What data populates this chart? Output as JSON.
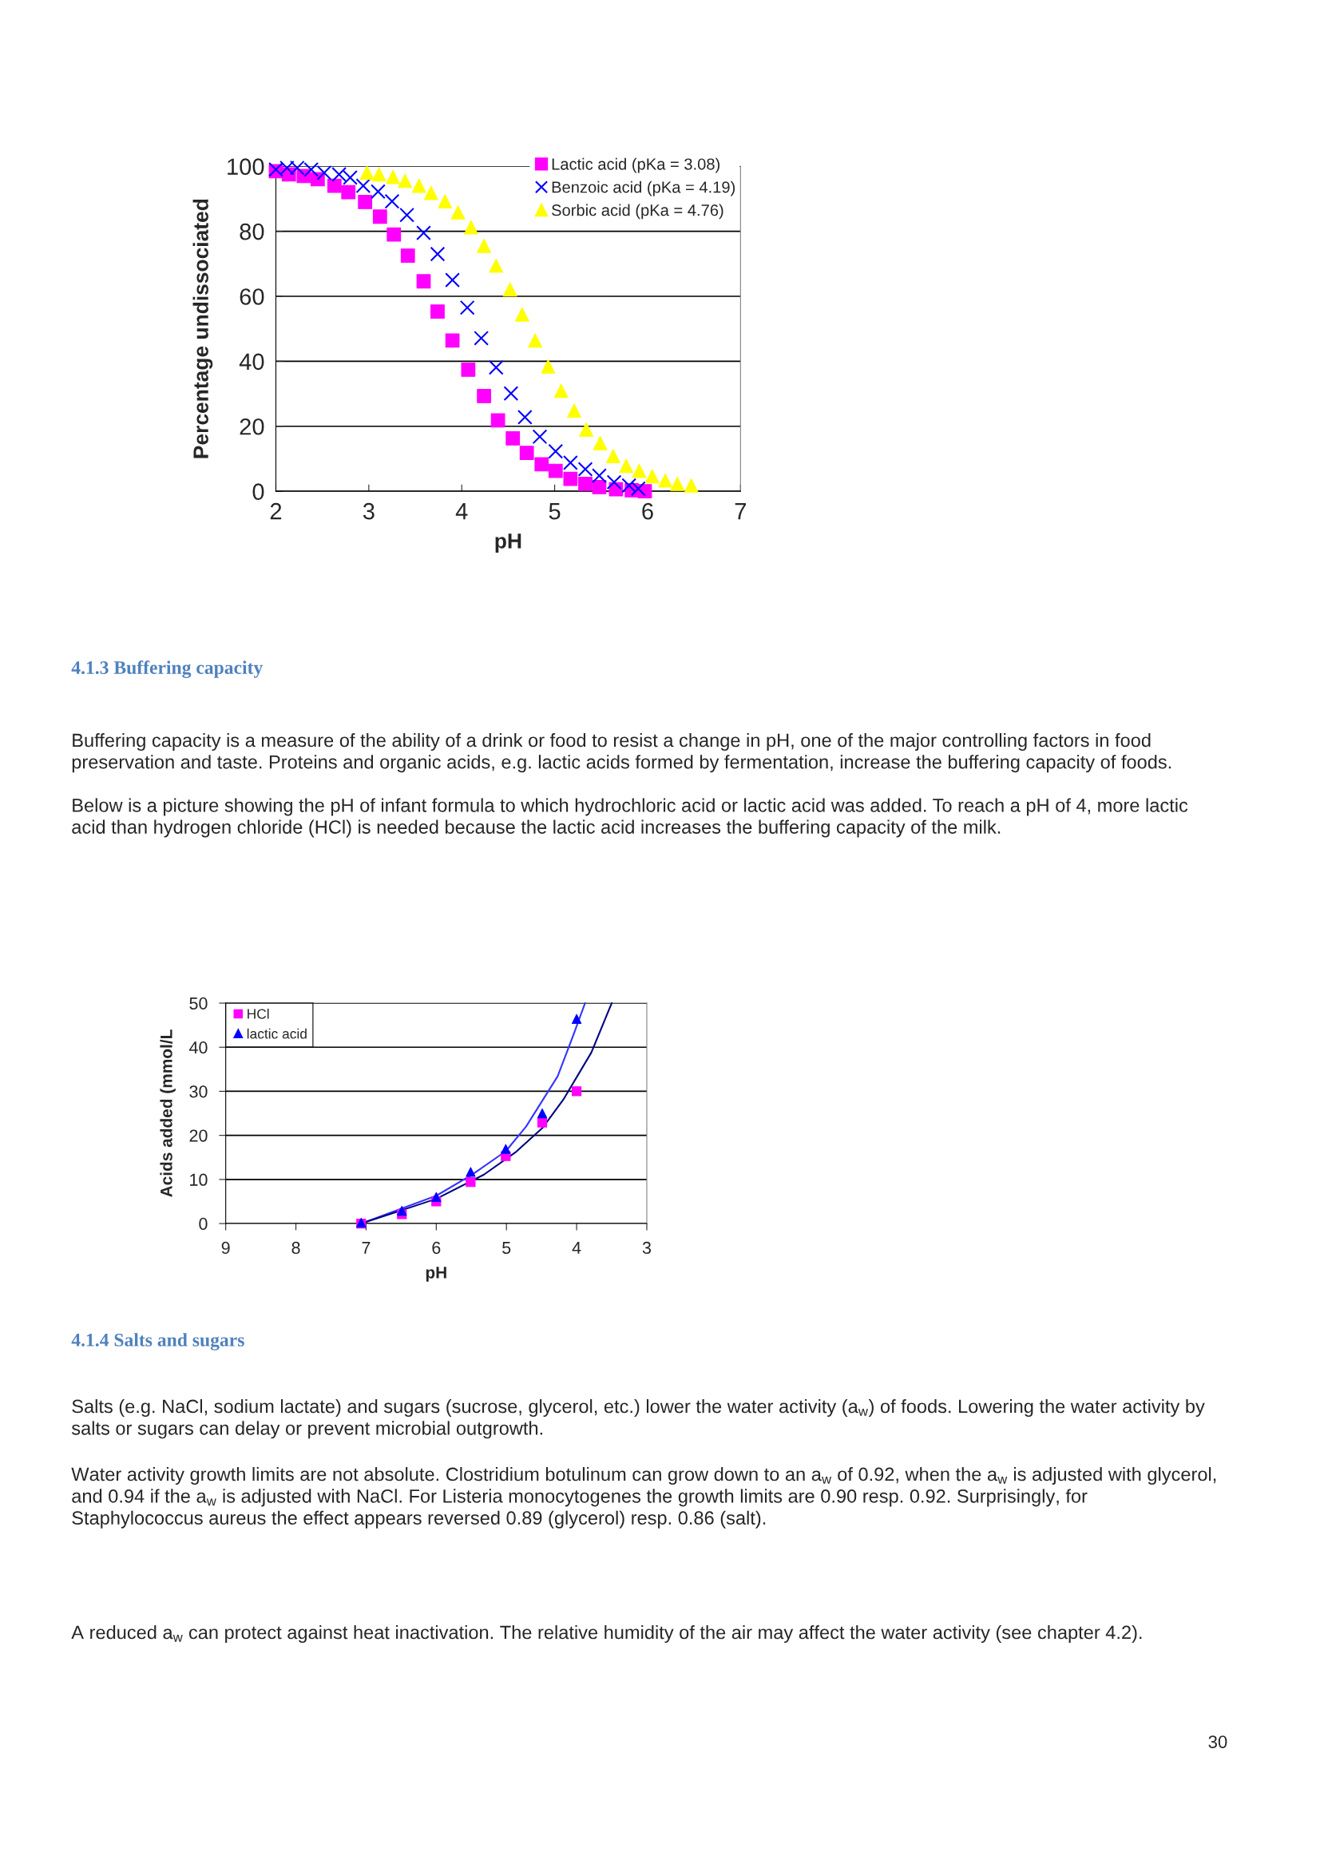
{
  "chart_data": [
    {
      "type": "scatter",
      "xlabel": "pH",
      "ylabel": "Percentage undissociated",
      "xlim": [
        2,
        7
      ],
      "ylim": [
        0,
        100
      ],
      "xticks": [
        2,
        3,
        4,
        5,
        6,
        7
      ],
      "yticks": [
        0,
        20,
        40,
        60,
        80,
        100
      ],
      "grid": "y",
      "legend": "top right",
      "series": [
        {
          "name": "Lactic acid (pKa = 3.08)",
          "color": "#ff00ff",
          "marker": "square",
          "x": [
            2.0,
            2.14,
            2.3,
            2.45,
            2.63,
            2.78,
            2.96,
            3.12,
            3.27,
            3.42,
            3.59,
            3.74,
            3.9,
            4.07,
            4.24,
            4.39,
            4.55,
            4.7,
            4.86,
            5.01,
            5.17,
            5.33,
            5.48,
            5.66,
            5.83,
            5.97
          ],
          "values": [
            98.5,
            97.5,
            97.0,
            96.0,
            94.0,
            92.0,
            89.0,
            84.5,
            79.0,
            72.5,
            64.6,
            55.3,
            46.4,
            37.4,
            29.3,
            21.8,
            16.3,
            11.8,
            8.3,
            6.3,
            3.8,
            2.3,
            1.3,
            0.6,
            0.3,
            0
          ]
        },
        {
          "name": "Benzoic acid (pKa = 4.19)",
          "color": "#0000ff",
          "marker": "cross",
          "x": [
            2.0,
            2.12,
            2.23,
            2.38,
            2.52,
            2.68,
            2.8,
            2.94,
            3.1,
            3.25,
            3.41,
            3.59,
            3.74,
            3.9,
            4.06,
            4.21,
            4.37,
            4.53,
            4.68,
            4.84,
            5.01,
            5.17,
            5.33,
            5.48,
            5.64,
            5.8,
            5.9
          ],
          "values": [
            99.0,
            99.5,
            99.5,
            99.0,
            98.0,
            97.5,
            96.5,
            94.0,
            92.2,
            89.2,
            85.0,
            79.5,
            73.0,
            65.0,
            56.5,
            47.1,
            38.1,
            30.1,
            22.8,
            16.8,
            12.3,
            8.8,
            6.8,
            4.8,
            2.8,
            1.8,
            0.8
          ]
        },
        {
          "name": "Sorbic acid (pKa = 4.76)",
          "color": "#ffff00",
          "marker": "triangle",
          "x": [
            2.98,
            3.11,
            3.26,
            3.39,
            3.54,
            3.67,
            3.82,
            3.96,
            4.1,
            4.24,
            4.37,
            4.52,
            4.65,
            4.79,
            4.93,
            5.07,
            5.21,
            5.34,
            5.49,
            5.63,
            5.77,
            5.91,
            6.05,
            6.19,
            6.32,
            6.47
          ],
          "values": [
            98.0,
            97.5,
            96.7,
            95.5,
            94.0,
            91.8,
            89.2,
            85.8,
            81.2,
            75.5,
            69.4,
            62.1,
            54.4,
            46.4,
            38.4,
            30.9,
            24.8,
            19.0,
            14.8,
            10.8,
            7.8,
            6.3,
            4.6,
            3.3,
            2.3,
            1.8
          ]
        }
      ]
    },
    {
      "type": "scatter",
      "title": "4.1.3 Buffering capacity",
      "subtitle": "Buffering capacity is a measure of the ability of a drink or food to resist a change in pH, one of the major controlling factors in food preservation and taste. Proteins and organic acids, e.g. lactic acids formed by fermentation, increase the buffering capacity of foods.\n\nBelow is a picture showing the pH of infant formula to which hydrochloric acid or lactic acid was added. To reach a pH of 4, more lactic acid than hydrogen chloride (HCl) is needed because the lactic acid increases the buffering capacity of the milk.",
      "xlabel": "pH",
      "ylabel": "Acids added (mmol/L",
      "xlim": [
        9,
        3
      ],
      "ylim": [
        0,
        50
      ],
      "xticks": [
        9,
        8,
        7,
        6,
        5,
        4,
        3
      ],
      "yticks": [
        0,
        10,
        20,
        30,
        40,
        50
      ],
      "grid": "y",
      "legend": "top left",
      "series": [
        {
          "name": "HCl",
          "color": "#ff00ff",
          "marker": "square",
          "x": [
            7.07,
            6.49,
            6.0,
            5.51,
            5.01,
            4.49,
            4.0
          ],
          "values": [
            0,
            2.1,
            5.0,
            9.4,
            15.3,
            22.9,
            30.0
          ]
        },
        {
          "name": "lactic acid",
          "color": "#0000ff",
          "marker": "triangle",
          "x": [
            7.07,
            6.49,
            6.0,
            5.51,
            5.01,
            4.49,
            4.0
          ],
          "values": [
            0.2,
            2.9,
            6.0,
            11.7,
            16.9,
            25.0,
            46.4
          ]
        },
        {
          "type": "line",
          "color": "#3333ff",
          "marker": "none",
          "x": [
            7.07,
            6.0,
            5.49,
            5.01,
            4.72,
            4.27,
            4.05,
            3.88
          ],
          "values": [
            0,
            6.3,
            11.1,
            16.4,
            22.0,
            33.4,
            42.6,
            50
          ]
        },
        {
          "type": "line",
          "color": "#000080",
          "marker": "none",
          "x": [
            7.07,
            6.0,
            5.32,
            4.86,
            4.48,
            4.19,
            3.79,
            3.5
          ],
          "values": [
            0,
            5.6,
            11.1,
            16.3,
            21.8,
            28.1,
            38.8,
            50
          ]
        }
      ],
      "annotations": [
        "4.1.4 Salts and sugars",
        "Salts (e.g. NaCl, sodium lactate) and sugars (sucrose, glycerol, etc.) lower the water activity (a$_{w}$) of foods. Lowering the water activity by salts or sugars can delay or prevent microbial outgrowth.",
        "Water activity growth limits are not absolute. Clostridium botulinum can grow down to an a$_{w}$ of 0.92, when the a$_{w}$ is adjusted with glycerol, and 0.94 if the a$_{w}$ is adjusted with NaCl. For Listeria monocytogenes the growth limits are 0.90 resp. 0.92. Surprisingly, for Staphylococcus aureus the effect appears reversed 0.89 (glycerol) resp. 0.86 (salt).",
        "A reduced a$_{w}$ can protect against heat inactivation. The relative humidity of the air may affect the water activity (see chapter 4.2).",
        "30"
      ]
    }
  ]
}
